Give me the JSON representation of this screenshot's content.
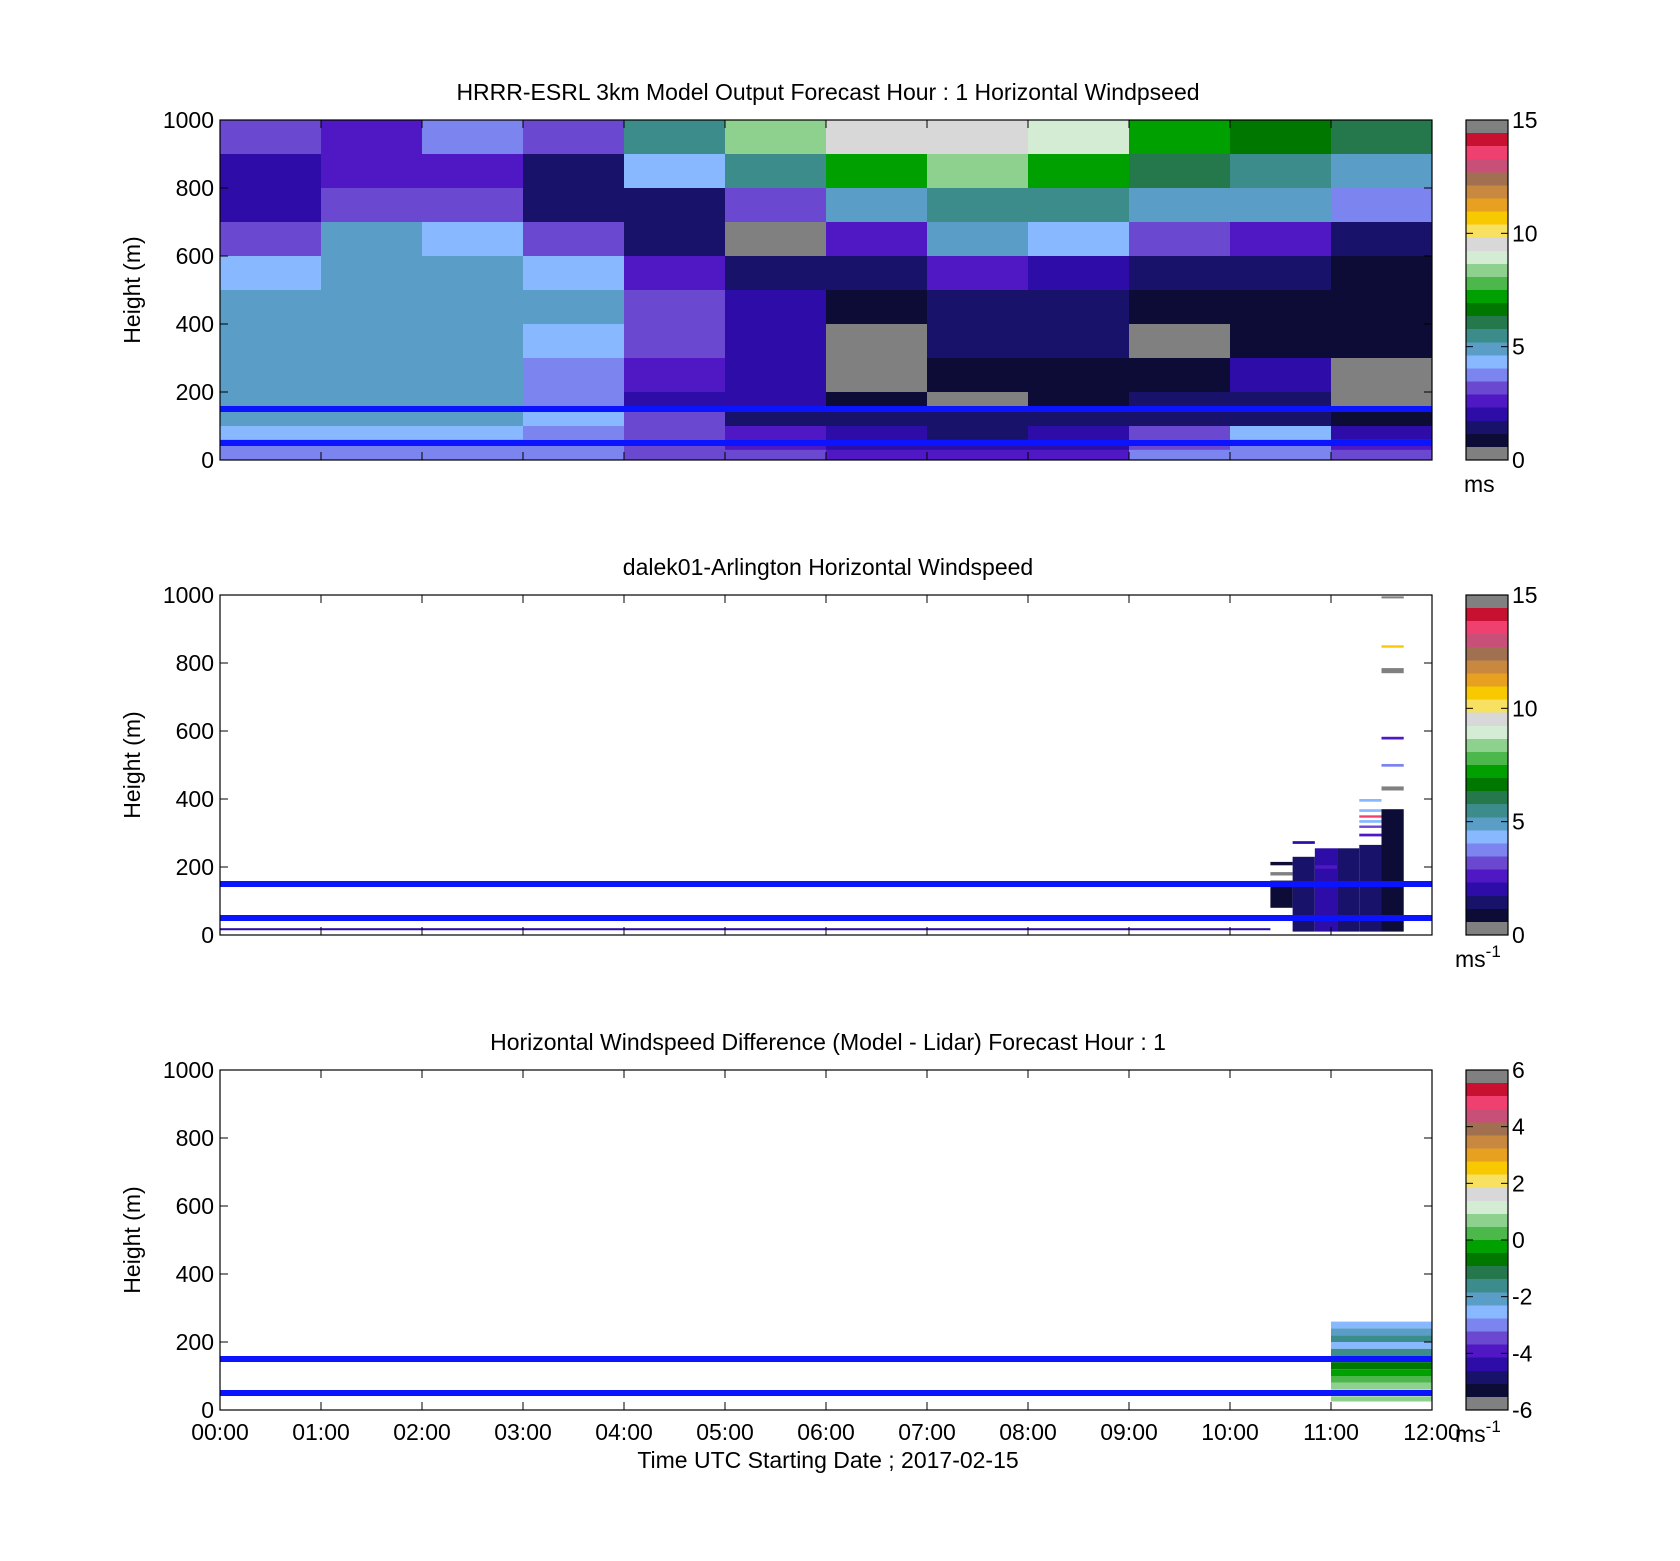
{
  "colormap": [
    "#808080",
    "#0c0c36",
    "#18126a",
    "#2e0ca8",
    "#5018c4",
    "#6a48d0",
    "#7c84f0",
    "#88b8ff",
    "#5a9ec8",
    "#3c8c8c",
    "#24784c",
    "#007800",
    "#00a000",
    "#4cb84c",
    "#8ed08e",
    "#d4ecd4",
    "#d8d8d8",
    "#f8e060",
    "#f8c800",
    "#e8a020",
    "#c88840",
    "#a07050",
    "#c85078",
    "#f04070",
    "#c81030",
    "#808080"
  ],
  "chart_data": [
    {
      "type": "heatmap",
      "title": "HRRR-ESRL 3km Model Output   Forecast Hour : 1 Horizontal Windpseed",
      "xlabel": "",
      "ylabel": "Height (m)",
      "xlim": [
        0,
        12
      ],
      "ylim": [
        0,
        1000
      ],
      "yticks": [
        0,
        200,
        400,
        600,
        800,
        1000
      ],
      "clim": [
        0,
        15
      ],
      "cticks": [
        0,
        5,
        10,
        15
      ],
      "colorbar_unit": "ms",
      "colorbar_sup": "",
      "reference_lines_m": [
        150,
        50
      ],
      "columns_hours": [
        0,
        1,
        2,
        3,
        4,
        5,
        6,
        7,
        8,
        9,
        10,
        11
      ],
      "rows": [
        {
          "y0": 900,
          "y1": 1000,
          "values": [
            3.4,
            2.6,
            3.7,
            3.3,
            5.3,
            8.4,
            9.5,
            9.6,
            9.0,
            7.3,
            6.5,
            6.0
          ]
        },
        {
          "y0": 800,
          "y1": 900,
          "values": [
            2.1,
            2.6,
            2.7,
            1.5,
            4.2,
            5.5,
            7.2,
            8.6,
            7.3,
            5.8,
            5.3,
            5.0
          ]
        },
        {
          "y0": 700,
          "y1": 800,
          "values": [
            2.1,
            3.3,
            2.9,
            1.3,
            1.3,
            3.3,
            5.0,
            5.6,
            5.3,
            5.0,
            4.7,
            3.9
          ]
        },
        {
          "y0": 600,
          "y1": 700,
          "values": [
            3.3,
            4.7,
            4.6,
            3.3,
            1.6,
            0.5,
            2.5,
            4.7,
            4.4,
            3.4,
            2.7,
            1.7
          ]
        },
        {
          "y0": 500,
          "y1": 600,
          "values": [
            4.5,
            5.0,
            5.0,
            4.4,
            2.6,
            1.2,
            1.4,
            2.6,
            2.3,
            1.5,
            1.3,
            1.0
          ]
        },
        {
          "y0": 400,
          "y1": 500,
          "values": [
            4.8,
            5.0,
            5.0,
            4.7,
            3.2,
            1.8,
            1.0,
            1.6,
            1.6,
            0.9,
            1.0,
            0.9
          ]
        },
        {
          "y0": 300,
          "y1": 400,
          "values": [
            4.9,
            5.0,
            4.9,
            4.5,
            3.0,
            2.0,
            0.4,
            1.2,
            1.2,
            0.1,
            1.0,
            0.8
          ]
        },
        {
          "y0": 200,
          "y1": 300,
          "values": [
            4.9,
            4.9,
            4.9,
            3.8,
            2.4,
            1.8,
            0.1,
            0.8,
            0.6,
            1.0,
            1.8,
            0.5
          ]
        },
        {
          "y0": 150,
          "y1": 200,
          "values": [
            4.9,
            4.9,
            4.8,
            3.8,
            2.2,
            1.8,
            0.6,
            0.2,
            0.6,
            1.4,
            1.7,
            0.1
          ]
        },
        {
          "y0": 100,
          "y1": 150,
          "values": [
            4.9,
            4.9,
            4.9,
            4.2,
            3.4,
            1.6,
            1.2,
            1.3,
            1.2,
            1.4,
            1.3,
            1.0
          ]
        },
        {
          "y0": 60,
          "y1": 100,
          "values": [
            4.6,
            4.6,
            4.6,
            4.0,
            3.2,
            2.4,
            1.8,
            1.6,
            1.8,
            3.0,
            4.2,
            2.2
          ]
        },
        {
          "y0": 30,
          "y1": 60,
          "values": [
            3.8,
            3.6,
            3.6,
            3.6,
            3.1,
            2.6,
            2.2,
            2.0,
            2.2,
            3.3,
            3.6,
            2.8
          ]
        },
        {
          "y0": 0,
          "y1": 30,
          "values": [
            3.6,
            3.6,
            3.6,
            3.5,
            3.3,
            3.0,
            2.6,
            2.6,
            2.6,
            3.5,
            3.7,
            3.4
          ]
        }
      ]
    },
    {
      "type": "heatmap",
      "title": "dalek01-Arlington  Horizontal Windspeed",
      "xlabel": "",
      "ylabel": "Height (m)",
      "xlim": [
        0,
        12
      ],
      "ylim": [
        0,
        1000
      ],
      "yticks": [
        0,
        200,
        400,
        600,
        800,
        1000
      ],
      "clim": [
        0,
        15
      ],
      "cticks": [
        0,
        5,
        10,
        15
      ],
      "colorbar_unit": "ms",
      "colorbar_sup": "-1",
      "reference_lines_m": [
        150,
        50
      ],
      "cells": [
        {
          "x0": 0.0,
          "x1": 10.4,
          "y0": 14,
          "y1": 20,
          "v": 1.8
        },
        {
          "x0": 10.4,
          "x1": 10.62,
          "y0": 80,
          "y1": 160,
          "v": 0.6
        },
        {
          "x0": 10.4,
          "x1": 10.62,
          "y0": 175,
          "y1": 185,
          "v": 0.5
        },
        {
          "x0": 10.4,
          "x1": 10.62,
          "y0": 205,
          "y1": 215,
          "v": 0.6
        },
        {
          "x0": 10.62,
          "x1": 10.84,
          "y0": 10,
          "y1": 230,
          "v": 1.6
        },
        {
          "x0": 10.62,
          "x1": 10.84,
          "y0": 268,
          "y1": 276,
          "v": 1.8
        },
        {
          "x0": 10.84,
          "x1": 11.06,
          "y0": 10,
          "y1": 255,
          "v": 1.9
        },
        {
          "x0": 10.84,
          "x1": 11.06,
          "y0": 195,
          "y1": 205,
          "v": 2.7
        },
        {
          "x0": 11.06,
          "x1": 11.28,
          "y0": 10,
          "y1": 255,
          "v": 1.7
        },
        {
          "x0": 11.28,
          "x1": 11.5,
          "y0": 10,
          "y1": 265,
          "v": 1.5
        },
        {
          "x0": 11.28,
          "x1": 11.5,
          "y0": 290,
          "y1": 298,
          "v": 2.8
        },
        {
          "x0": 11.28,
          "x1": 11.5,
          "y0": 315,
          "y1": 322,
          "v": 3.3
        },
        {
          "x0": 11.28,
          "x1": 11.5,
          "y0": 330,
          "y1": 338,
          "v": 4.2
        },
        {
          "x0": 11.28,
          "x1": 11.5,
          "y0": 345,
          "y1": 352,
          "v": 13.5
        },
        {
          "x0": 11.28,
          "x1": 11.5,
          "y0": 362,
          "y1": 370,
          "v": 4.6
        },
        {
          "x0": 11.28,
          "x1": 11.5,
          "y0": 392,
          "y1": 400,
          "v": 4.4
        },
        {
          "x0": 11.5,
          "x1": 11.72,
          "y0": 10,
          "y1": 370,
          "v": 1.1
        },
        {
          "x0": 11.5,
          "x1": 11.72,
          "y0": 425,
          "y1": 437,
          "v": 0.4
        },
        {
          "x0": 11.5,
          "x1": 11.72,
          "y0": 495,
          "y1": 503,
          "v": 4.0
        },
        {
          "x0": 11.5,
          "x1": 11.72,
          "y0": 575,
          "y1": 583,
          "v": 2.5
        },
        {
          "x0": 11.5,
          "x1": 11.72,
          "y0": 770,
          "y1": 785,
          "v": 0.0
        },
        {
          "x0": 11.5,
          "x1": 11.72,
          "y0": 845,
          "y1": 852,
          "v": 10.5
        },
        {
          "x0": 11.5,
          "x1": 11.72,
          "y0": 990,
          "y1": 996,
          "v": 0.0
        }
      ]
    },
    {
      "type": "heatmap",
      "title": "Horizontal Windspeed Difference (Model - Lidar) Forecast Hour : 1",
      "xlabel": "Time UTC  Starting Date ; 2017-02-15",
      "ylabel": "Height (m)",
      "xlim": [
        0,
        12
      ],
      "ylim": [
        0,
        1000
      ],
      "yticks": [
        0,
        200,
        400,
        600,
        800,
        1000
      ],
      "xticks": [
        "00:00",
        "01:00",
        "02:00",
        "03:00",
        "04:00",
        "05:00",
        "06:00",
        "07:00",
        "08:00",
        "09:00",
        "10:00",
        "11:00",
        "12:00"
      ],
      "clim": [
        -6,
        6
      ],
      "cticks": [
        -6,
        -4,
        -2,
        0,
        2,
        4,
        6
      ],
      "colorbar_unit": "ms",
      "colorbar_sup": "-1",
      "reference_lines_m": [
        150,
        50
      ],
      "cells": [
        {
          "x0": 11,
          "x1": 12,
          "y0": 240,
          "y1": 260,
          "v": -2.6
        },
        {
          "x0": 11,
          "x1": 12,
          "y0": 220,
          "y1": 240,
          "v": -2.1
        },
        {
          "x0": 11,
          "x1": 12,
          "y0": 200,
          "y1": 220,
          "v": -1.8
        },
        {
          "x0": 11,
          "x1": 12,
          "y0": 180,
          "y1": 200,
          "v": -2.4
        },
        {
          "x0": 11,
          "x1": 12,
          "y0": 160,
          "y1": 180,
          "v": -1.6
        },
        {
          "x0": 11,
          "x1": 12,
          "y0": 140,
          "y1": 160,
          "v": -1.0
        },
        {
          "x0": 11,
          "x1": 12,
          "y0": 120,
          "y1": 140,
          "v": -0.6
        },
        {
          "x0": 11,
          "x1": 12,
          "y0": 100,
          "y1": 120,
          "v": -0.3
        },
        {
          "x0": 11,
          "x1": 12,
          "y0": 80,
          "y1": 100,
          "v": 0.1
        },
        {
          "x0": 11,
          "x1": 12,
          "y0": 60,
          "y1": 80,
          "v": 0.7
        },
        {
          "x0": 11,
          "x1": 12,
          "y0": 40,
          "y1": 60,
          "v": 1.0
        },
        {
          "x0": 11,
          "x1": 12,
          "y0": 25,
          "y1": 40,
          "v": 0.8
        }
      ]
    }
  ]
}
